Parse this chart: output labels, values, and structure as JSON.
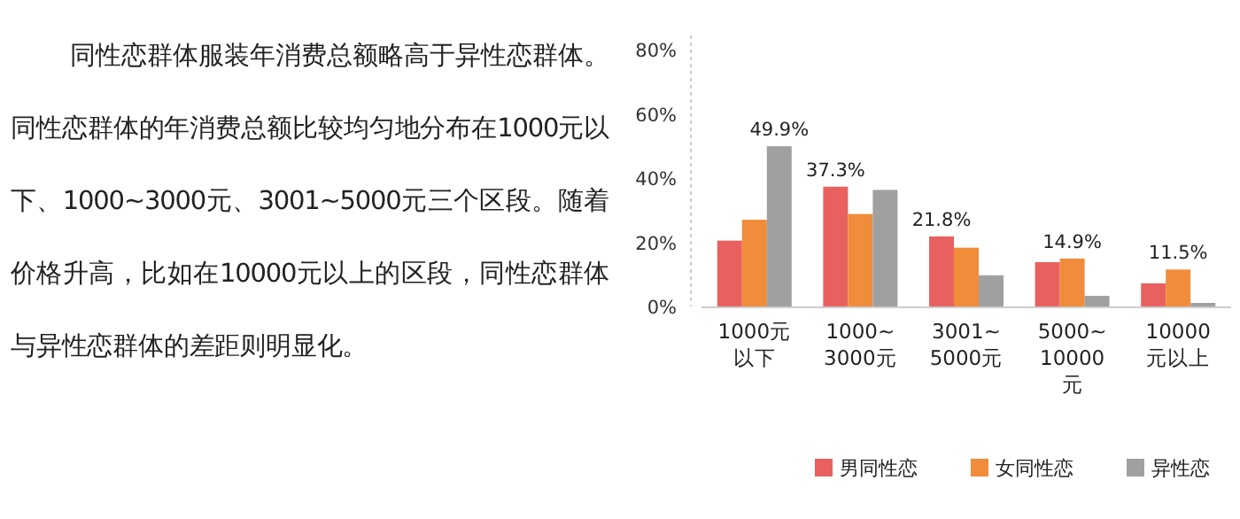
{
  "chart_data": {
    "type": "bar",
    "annotations": [
      "同性恋群体服装年消费总额略高于异性恋群体。同性恋群体的年消费总额比较均匀地分布在1000元以下、1000~3000元、3001~5000元三个区段。随着价格升高，比如在10000元以上的区段，同性恋群体与异性恋群体的差距则明显化。"
    ],
    "categories": [
      "1000元以下",
      "1000~3000元",
      "3001~5000元",
      "5000~10000元",
      "10000元以上"
    ],
    "series": [
      {
        "name": "男同性恋",
        "color": "#e8615f",
        "values": [
          20.5,
          37.3,
          21.8,
          13.8,
          7.2
        ],
        "value_labels": [
          null,
          "37.3%",
          "21.8%",
          null,
          null
        ]
      },
      {
        "name": "女同性恋",
        "color": "#f08c3a",
        "values": [
          27,
          28.8,
          18.3,
          14.9,
          11.5
        ],
        "value_labels": [
          null,
          null,
          null,
          "14.9%",
          "11.5%"
        ]
      },
      {
        "name": "异性恋",
        "color": "#a0a0a0",
        "values": [
          49.9,
          36.3,
          9.7,
          3.3,
          1.1
        ],
        "value_labels": [
          "49.9%",
          null,
          null,
          null,
          null
        ]
      }
    ],
    "ylim": [
      0,
      80
    ],
    "yticks": [
      {
        "value": 0,
        "label": "0%"
      },
      {
        "value": 20,
        "label": "20%"
      },
      {
        "value": 40,
        "label": "40%"
      },
      {
        "value": 60,
        "label": "60%"
      },
      {
        "value": 80,
        "label": "80%"
      }
    ],
    "grid": false,
    "legend": "bottom right"
  }
}
